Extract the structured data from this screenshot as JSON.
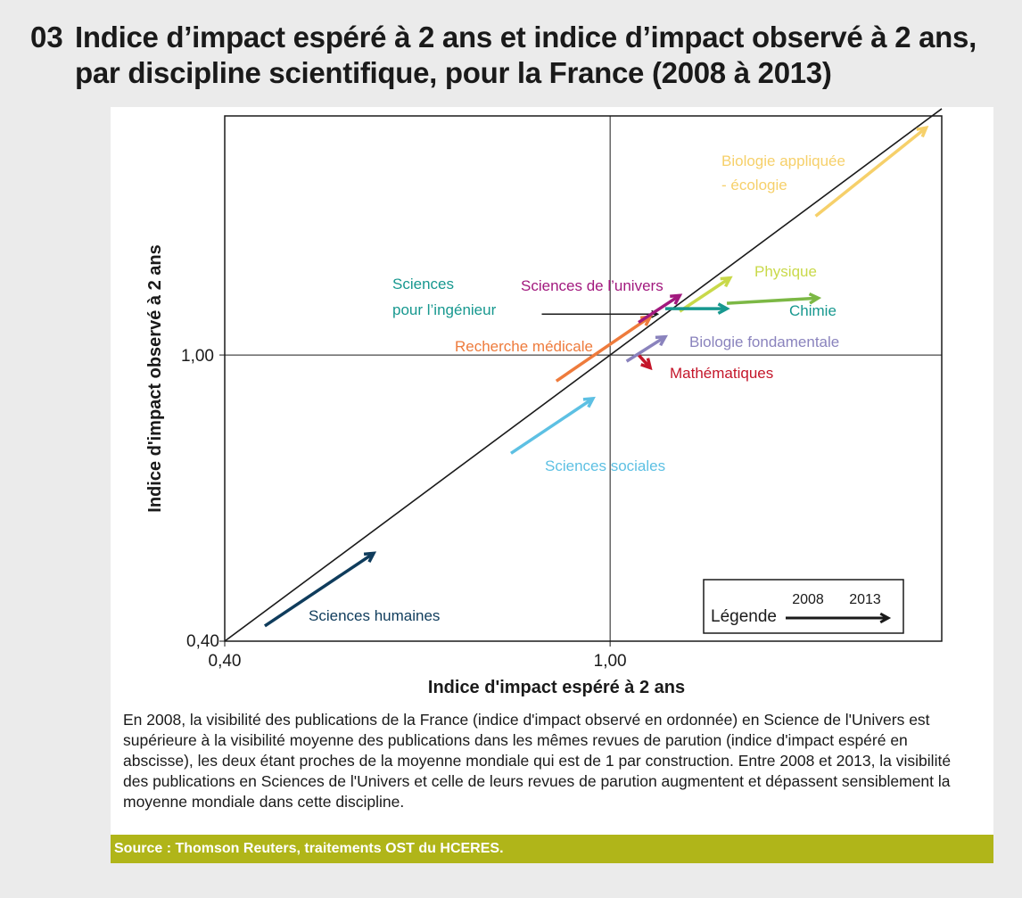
{
  "header": {
    "number": "03",
    "title_line1": "Indice d’impact espéré à 2 ans et indice d’impact observé à 2 ans,",
    "title_line2": "par discipline scientifique, pour la France (2008 à 2013)"
  },
  "chart_data": {
    "type": "line",
    "title": "Indice d’impact espéré à 2 ans et indice d’impact observé à 2 ans, par discipline scientifique, pour la France (2008 à 2013)",
    "xlabel": "Indice d'impact espéré à 2 ans",
    "ylabel": "Indice d'impact observé  à 2 ans",
    "x_scale": "log",
    "y_scale": "log",
    "xlim": [
      0.4,
      2.2
    ],
    "ylim": [
      0.4,
      2.15
    ],
    "x_ticks": [
      "0,40",
      "1,00"
    ],
    "y_ticks": [
      "0,40",
      "1,00"
    ],
    "reference_lines": [
      "x = 1",
      "y = 1",
      "y = x"
    ],
    "legend": {
      "label": "Légende",
      "from": "2008",
      "to": "2013",
      "placement": "bottom-right"
    },
    "series": [
      {
        "name": "Sciences humaines",
        "color": "#0f3c5c",
        "x": [
          0.44,
          0.57
        ],
        "y": [
          0.42,
          0.53
        ],
        "label": "Sciences humaines"
      },
      {
        "name": "Sciences sociales",
        "color": "#5dc0e3",
        "x": [
          0.79,
          0.96
        ],
        "y": [
          0.73,
          0.87
        ],
        "label": "Sciences sociales"
      },
      {
        "name": "Recherche médicale",
        "color": "#ee7b3c",
        "x": [
          0.88,
          1.1
        ],
        "y": [
          0.92,
          1.13
        ],
        "label": "Recherche médicale"
      },
      {
        "name": "Mathématiques",
        "color": "#c4162a",
        "x": [
          1.07,
          1.1
        ],
        "y": [
          1.0,
          0.96
        ],
        "label": "Mathématiques"
      },
      {
        "name": "Biologie fondamentale",
        "color": "#8a83bd",
        "x": [
          1.04,
          1.14
        ],
        "y": [
          0.98,
          1.06
        ],
        "label": "Biologie fondamentale"
      },
      {
        "name": "Sciences pour l’ingénieur",
        "color": "#1a1a1a",
        "x": [
          0.85,
          1.12
        ],
        "y": [
          1.14,
          1.14
        ],
        "label_line1": "Sciences",
        "label_line2": "pour l’ingénieur"
      },
      {
        "name": "Sciences de l’univers",
        "color": "#a2197e",
        "x": [
          1.07,
          1.18
        ],
        "y": [
          1.11,
          1.21
        ],
        "label": "Sciences de l’univers"
      },
      {
        "name": "Physique",
        "color": "#c9d94a",
        "x": [
          1.18,
          1.33
        ],
        "y": [
          1.15,
          1.28
        ],
        "label": "Physique"
      },
      {
        "name": "Chimie",
        "color": "#17988f",
        "x": [
          1.14,
          1.32
        ],
        "y": [
          1.16,
          1.16
        ],
        "label": "Chimie"
      },
      {
        "name": "Chimie",
        "color": "#7cb845",
        "x": [
          1.32,
          1.64
        ],
        "y": [
          1.18,
          1.2
        ],
        "label": ""
      },
      {
        "name": "Biologie appliquée - écologie",
        "color": "#f6d06a",
        "x": [
          1.63,
          2.12
        ],
        "y": [
          1.56,
          2.07
        ],
        "label_line1": "Biologie appliquée",
        "label_line2": "- écologie"
      }
    ]
  },
  "caption": "En 2008, la visibilité des publications de la France (indice d'impact observé en ordonnée) en Science de l'Univers est supérieure à la visibilité moyenne des publications dans les mêmes revues de parution (indice d'impact espéré en abscisse), les deux étant proches de la moyenne mondiale qui est de 1 par construction. Entre 2008 et 2013, la visibilité des publications en Sciences de l'Univers et celle de leurs revues de parution augmentent et dépassent sensiblement la moyenne mondiale dans cette discipline.",
  "source": "Source : Thomson Reuters, traitements OST du HCERES."
}
